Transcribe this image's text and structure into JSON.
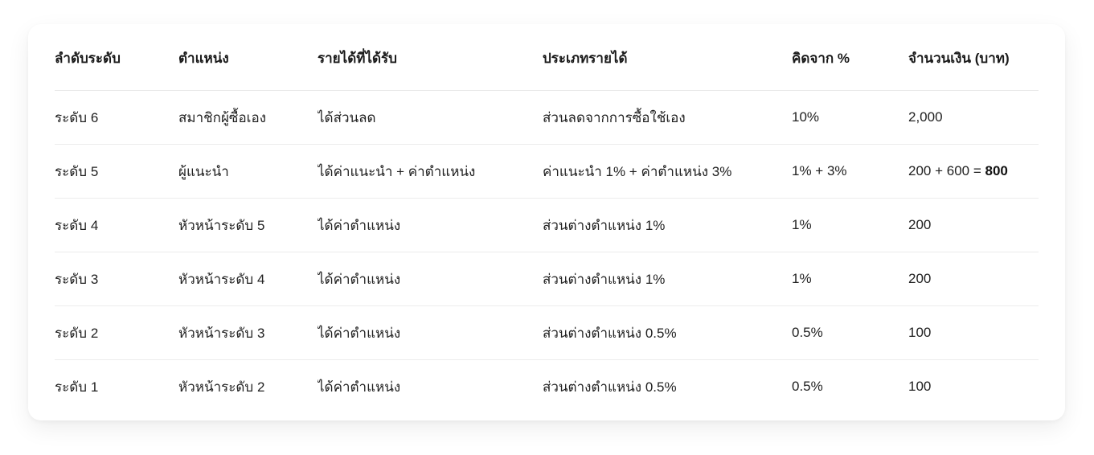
{
  "table": {
    "columns": [
      {
        "key": "level",
        "label": "ลำดับระดับ"
      },
      {
        "key": "position",
        "label": "ตำแหน่ง"
      },
      {
        "key": "income",
        "label": "รายได้ที่ได้รับ"
      },
      {
        "key": "income_type",
        "label": "ประเภทรายได้"
      },
      {
        "key": "percent",
        "label": "คิดจาก %"
      },
      {
        "key": "amount",
        "label": "จำนวนเงิน (บาท)"
      }
    ],
    "rows": [
      {
        "level": "ระดับ 6",
        "position": "สมาชิกผู้ซื้อเอง",
        "income": "ได้ส่วนลด",
        "income_type": "ส่วนลดจากการซื้อใช้เอง",
        "percent": "10%",
        "amount": "2,000",
        "amount_bold": ""
      },
      {
        "level": "ระดับ 5",
        "position": "ผู้แนะนำ",
        "income": "ได้ค่าแนะนำ + ค่าตำแหน่ง",
        "income_type": "ค่าแนะนำ 1% + ค่าตำแหน่ง 3%",
        "percent": "1% + 3%",
        "amount": "200 + 600 = ",
        "amount_bold": "800"
      },
      {
        "level": "ระดับ 4",
        "position": "หัวหน้าระดับ 5",
        "income": "ได้ค่าตำแหน่ง",
        "income_type": "ส่วนต่างตำแหน่ง 1%",
        "percent": "1%",
        "amount": "200",
        "amount_bold": ""
      },
      {
        "level": "ระดับ 3",
        "position": "หัวหน้าระดับ 4",
        "income": "ได้ค่าตำแหน่ง",
        "income_type": "ส่วนต่างตำแหน่ง 1%",
        "percent": "1%",
        "amount": "200",
        "amount_bold": ""
      },
      {
        "level": "ระดับ 2",
        "position": "หัวหน้าระดับ 3",
        "income": "ได้ค่าตำแหน่ง",
        "income_type": "ส่วนต่างตำแหน่ง 0.5%",
        "percent": "0.5%",
        "amount": "100",
        "amount_bold": ""
      },
      {
        "level": "ระดับ 1",
        "position": "หัวหน้าระดับ 2",
        "income": "ได้ค่าตำแหน่ง",
        "income_type": "ส่วนต่างตำแหน่ง 0.5%",
        "percent": "0.5%",
        "amount": "100",
        "amount_bold": ""
      }
    ]
  },
  "colors": {
    "card_background": "#ffffff",
    "header_text": "#1a1a1a",
    "body_text": "#212121",
    "divider": "#ececec"
  }
}
